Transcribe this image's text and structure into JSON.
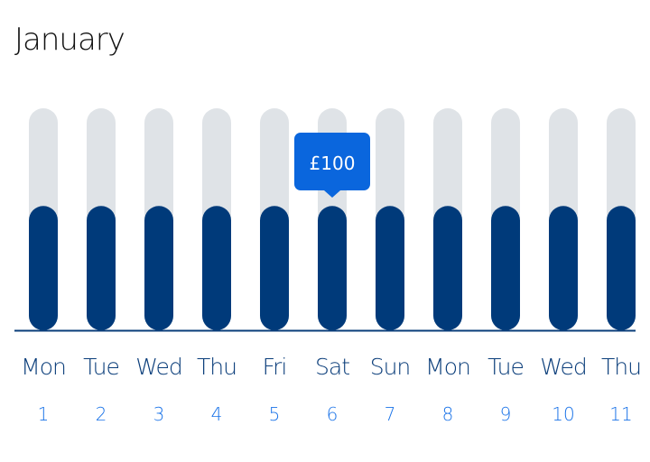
{
  "header": {
    "title": "January"
  },
  "tooltip": {
    "label": "£100",
    "day_index": 5
  },
  "colors": {
    "track": "#dfe3e7",
    "bar": "#003a7a",
    "tooltip": "#0a66dd",
    "axis": "#0a3d7a"
  },
  "chart_data": {
    "type": "bar",
    "categories": [
      "Mon",
      "Tue",
      "Wed",
      "Thu",
      "Fri",
      "Sat",
      "Sun",
      "Mon",
      "Tue",
      "Wed",
      "Thu"
    ],
    "dates": [
      "1",
      "2",
      "3",
      "4",
      "5",
      "6",
      "7",
      "8",
      "9",
      "10",
      "11"
    ],
    "values": [
      0.56,
      0.56,
      0.56,
      0.56,
      0.56,
      0.56,
      0.56,
      0.56,
      0.56,
      0.56,
      0.56
    ],
    "ylim": [
      0,
      1
    ],
    "grid": false,
    "legend": "none"
  }
}
